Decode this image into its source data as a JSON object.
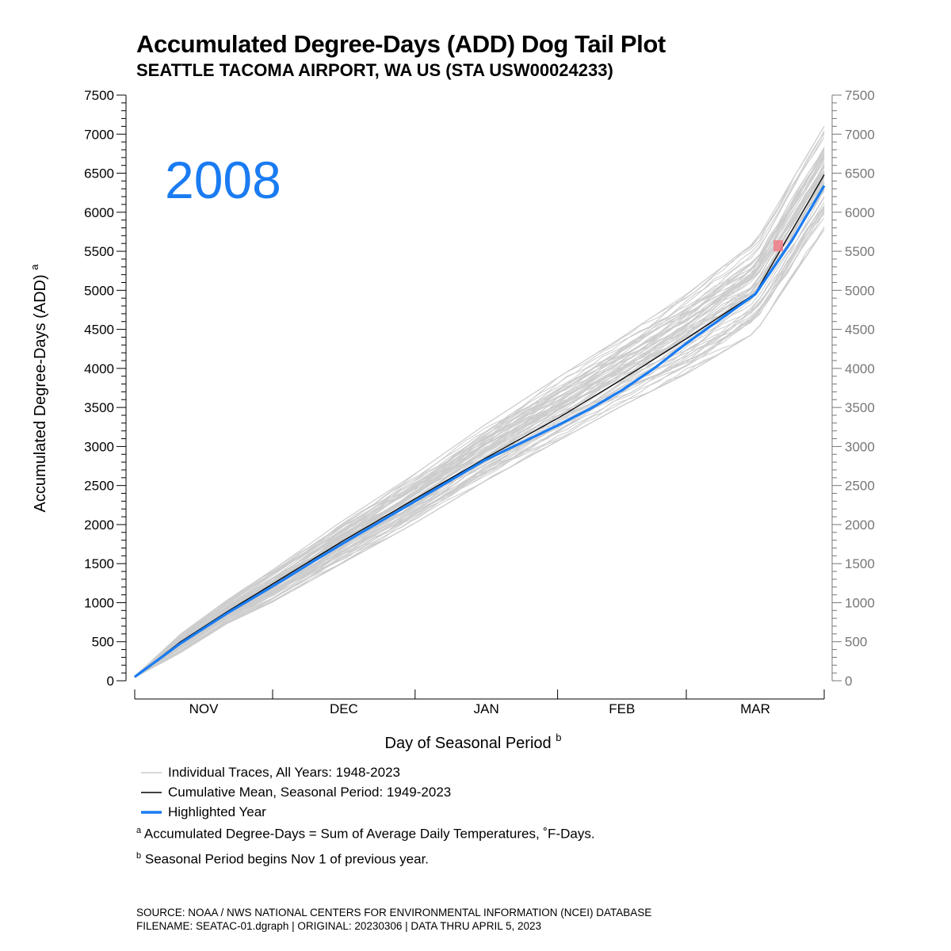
{
  "title": "Accumulated Degree-Days (ADD) Dog Tail Plot",
  "subtitle": "SEATTLE TACOMA AIRPORT, WA US (STA USW00024233)",
  "highlight_year_label": "2008",
  "colors": {
    "highlight": "#1a7cf2",
    "trace": "#cccccc",
    "mean": "#000000",
    "marker": "#f07a85",
    "right_axis": "#777777"
  },
  "chart_data": {
    "type": "line",
    "ylabel": "Accumulated Degree-Days (ADD)",
    "ylabel_sup": "a",
    "xlabel": "Day of Seasonal Period",
    "xlabel_sup": "b",
    "ylim": [
      0,
      7500
    ],
    "y_major_step": 500,
    "y_minor_step": 100,
    "xlim": [
      1,
      151
    ],
    "month_boundaries": [
      1,
      31,
      62,
      93,
      121,
      151
    ],
    "months": [
      "NOV",
      "DEC",
      "JAN",
      "FEB",
      "MAR"
    ],
    "series": [
      {
        "name": "Cumulative Mean",
        "x": [
          1,
          11,
          21,
          31,
          46,
          62,
          77,
          93,
          107,
          121,
          136,
          151
        ],
        "y": [
          50,
          500,
          880,
          1240,
          1780,
          2330,
          2840,
          3360,
          3860,
          4380,
          4960,
          6480
        ]
      },
      {
        "name": "Highlighted Year",
        "x": [
          1,
          11,
          21,
          31,
          46,
          62,
          77,
          93,
          100,
          107,
          114,
          121,
          136,
          144,
          151
        ],
        "y": [
          50,
          480,
          860,
          1210,
          1750,
          2300,
          2820,
          3270,
          3480,
          3720,
          4000,
          4320,
          4950,
          5640,
          6340
        ]
      }
    ],
    "traces": {
      "years": "1948-2023",
      "band_x": [
        1,
        11,
        21,
        31,
        46,
        62,
        77,
        93,
        107,
        121,
        136,
        151
      ],
      "band_low": [
        42,
        360,
        730,
        1010,
        1500,
        2020,
        2550,
        3070,
        3520,
        3930,
        4460,
        5780
      ],
      "band_high": [
        58,
        600,
        1030,
        1420,
        2040,
        2650,
        3270,
        3880,
        4400,
        4950,
        5620,
        7100
      ]
    },
    "marker": {
      "x": 141,
      "y": 5570,
      "label": ""
    }
  },
  "legend": [
    {
      "label": "Individual Traces, All Years: 1948-2023",
      "kind": "trace"
    },
    {
      "label": "Cumulative Mean, Seasonal Period: 1949-2023",
      "kind": "mean"
    },
    {
      "label": "Highlighted Year",
      "kind": "highlight"
    }
  ],
  "notes": [
    {
      "sup": "a",
      "text": "Accumulated Degree-Days = Sum of Average Daily Temperatures, ˚F-Days."
    },
    {
      "sup": "b",
      "text": "Seasonal Period begins Nov 1 of previous year."
    }
  ],
  "footer": {
    "line1": "SOURCE: NOAA / NWS NATIONAL CENTERS FOR ENVIRONMENTAL INFORMATION (NCEI) DATABASE",
    "line2": "FILENAME: SEATAC-01.dgraph | ORIGINAL: 20230306 | DATA THRU APRIL 5, 2023"
  }
}
